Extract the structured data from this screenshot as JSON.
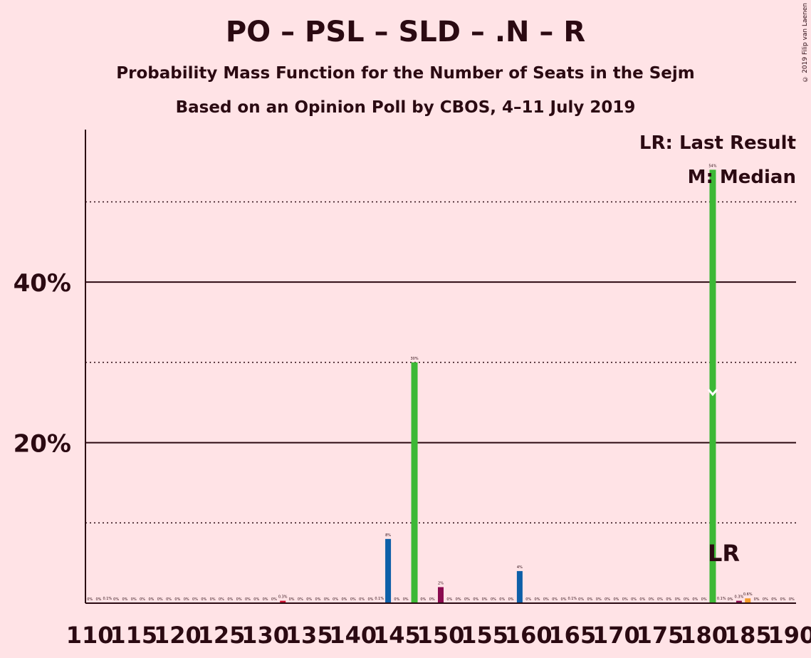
{
  "header": {
    "title": "PO – PSL – SLD – .N – R",
    "subtitle": "Probability Mass Function for the Number of Seats in the Sejm",
    "source": "Based on an Opinion Poll by CBOS, 4–11 July 2019",
    "copyright": "© 2019 Filip van Laenen"
  },
  "chart_data": {
    "type": "bar",
    "title": "PO – PSL – SLD – .N – R",
    "xlabel": "",
    "ylabel": "",
    "xlim": [
      110,
      190
    ],
    "ylim": [
      0,
      59
    ],
    "y_ticks": [
      {
        "value": 20,
        "label": "20%"
      },
      {
        "value": 40,
        "label": "40%"
      }
    ],
    "x_tick_labels": [
      "110",
      "115",
      "120",
      "125",
      "130",
      "135",
      "140",
      "145",
      "150",
      "155",
      "160",
      "165",
      "170",
      "175",
      "180",
      "185",
      "190"
    ],
    "legend": {
      "position": "top-right",
      "last_result": "LR: Last Result",
      "median": "M: Median"
    },
    "last_result": {
      "seat": 181,
      "label": "LR"
    },
    "median": {
      "seat": 181,
      "value": 26
    },
    "colors": {
      "green": "#3db836",
      "blue": "#0d5fa8",
      "purple": "#8a0a4f",
      "orange": "#f29a2a",
      "red": "#c8102e"
    },
    "bars": [
      {
        "x": 110,
        "value": 0,
        "label": "0%"
      },
      {
        "x": 111,
        "value": 0,
        "label": "0%"
      },
      {
        "x": 112,
        "value": 0.1,
        "label": "0.1%"
      },
      {
        "x": 113,
        "value": 0,
        "label": "0%"
      },
      {
        "x": 114,
        "value": 0,
        "label": "0%"
      },
      {
        "x": 115,
        "value": 0,
        "label": "0%"
      },
      {
        "x": 116,
        "value": 0,
        "label": "0%"
      },
      {
        "x": 117,
        "value": 0,
        "label": "0%"
      },
      {
        "x": 118,
        "value": 0,
        "label": "0%"
      },
      {
        "x": 119,
        "value": 0,
        "label": "0%"
      },
      {
        "x": 120,
        "value": 0,
        "label": "0%"
      },
      {
        "x": 121,
        "value": 0,
        "label": "0%"
      },
      {
        "x": 122,
        "value": 0,
        "label": "0%"
      },
      {
        "x": 123,
        "value": 0,
        "label": "0%"
      },
      {
        "x": 124,
        "value": 0,
        "label": "0%"
      },
      {
        "x": 125,
        "value": 0,
        "label": "0%"
      },
      {
        "x": 126,
        "value": 0,
        "label": "0%"
      },
      {
        "x": 127,
        "value": 0,
        "label": "0%"
      },
      {
        "x": 128,
        "value": 0,
        "label": "0%"
      },
      {
        "x": 129,
        "value": 0,
        "label": "0%"
      },
      {
        "x": 130,
        "value": 0,
        "label": "0%"
      },
      {
        "x": 131,
        "value": 0,
        "label": "0%"
      },
      {
        "x": 132,
        "value": 0.3,
        "label": "0.3%",
        "color": "red"
      },
      {
        "x": 133,
        "value": 0,
        "label": "0%"
      },
      {
        "x": 134,
        "value": 0,
        "label": "0%"
      },
      {
        "x": 135,
        "value": 0,
        "label": "0%"
      },
      {
        "x": 136,
        "value": 0,
        "label": "0%"
      },
      {
        "x": 137,
        "value": 0,
        "label": "0%"
      },
      {
        "x": 138,
        "value": 0,
        "label": "0%"
      },
      {
        "x": 139,
        "value": 0,
        "label": "0%"
      },
      {
        "x": 140,
        "value": 0,
        "label": "0%"
      },
      {
        "x": 141,
        "value": 0,
        "label": "0%"
      },
      {
        "x": 142,
        "value": 0,
        "label": "0%"
      },
      {
        "x": 143,
        "value": 0.1,
        "label": "0.1%"
      },
      {
        "x": 144,
        "value": 8,
        "label": "8%",
        "color": "blue"
      },
      {
        "x": 145,
        "value": 0,
        "label": "0%"
      },
      {
        "x": 146,
        "value": 0,
        "label": "0%"
      },
      {
        "x": 147,
        "value": 30,
        "label": "30%",
        "color": "green"
      },
      {
        "x": 148,
        "value": 0,
        "label": "0%"
      },
      {
        "x": 149,
        "value": 0,
        "label": "0%"
      },
      {
        "x": 150,
        "value": 2,
        "label": "2%",
        "color": "purple"
      },
      {
        "x": 151,
        "value": 0,
        "label": "0%"
      },
      {
        "x": 152,
        "value": 0,
        "label": "0%"
      },
      {
        "x": 153,
        "value": 0,
        "label": "0%"
      },
      {
        "x": 154,
        "value": 0,
        "label": "0%"
      },
      {
        "x": 155,
        "value": 0,
        "label": "0%"
      },
      {
        "x": 156,
        "value": 0,
        "label": "0%"
      },
      {
        "x": 157,
        "value": 0,
        "label": "0%"
      },
      {
        "x": 158,
        "value": 0,
        "label": "0%"
      },
      {
        "x": 159,
        "value": 4,
        "label": "4%",
        "color": "blue"
      },
      {
        "x": 160,
        "value": 0,
        "label": "0%"
      },
      {
        "x": 161,
        "value": 0,
        "label": "0%"
      },
      {
        "x": 162,
        "value": 0,
        "label": "0%"
      },
      {
        "x": 163,
        "value": 0,
        "label": "0%"
      },
      {
        "x": 164,
        "value": 0,
        "label": "0%"
      },
      {
        "x": 165,
        "value": 0.1,
        "label": "0.1%"
      },
      {
        "x": 166,
        "value": 0,
        "label": "0%"
      },
      {
        "x": 167,
        "value": 0,
        "label": "0%"
      },
      {
        "x": 168,
        "value": 0,
        "label": "0%"
      },
      {
        "x": 169,
        "value": 0,
        "label": "0%"
      },
      {
        "x": 170,
        "value": 0,
        "label": "0%"
      },
      {
        "x": 171,
        "value": 0,
        "label": "0%"
      },
      {
        "x": 172,
        "value": 0,
        "label": "0%"
      },
      {
        "x": 173,
        "value": 0,
        "label": "0%"
      },
      {
        "x": 174,
        "value": 0,
        "label": "0%"
      },
      {
        "x": 175,
        "value": 0,
        "label": "0%"
      },
      {
        "x": 176,
        "value": 0,
        "label": "0%"
      },
      {
        "x": 177,
        "value": 0,
        "label": "0%"
      },
      {
        "x": 178,
        "value": 0,
        "label": "0%"
      },
      {
        "x": 179,
        "value": 0,
        "label": "0%"
      },
      {
        "x": 180,
        "value": 0,
        "label": "0%"
      },
      {
        "x": 181,
        "value": 54,
        "label": "54%",
        "color": "green"
      },
      {
        "x": 182,
        "value": 0.1,
        "label": "0.1%"
      },
      {
        "x": 183,
        "value": 0,
        "label": "0%"
      },
      {
        "x": 184,
        "value": 0.3,
        "label": "0.3%",
        "color": "purple"
      },
      {
        "x": 185,
        "value": 0.6,
        "label": "0.6%",
        "color": "orange"
      },
      {
        "x": 186,
        "value": 0,
        "label": "0%"
      },
      {
        "x": 187,
        "value": 0,
        "label": "0%"
      },
      {
        "x": 188,
        "value": 0,
        "label": "0%"
      },
      {
        "x": 189,
        "value": 0,
        "label": "0%"
      },
      {
        "x": 190,
        "value": 0,
        "label": "0%"
      }
    ]
  }
}
